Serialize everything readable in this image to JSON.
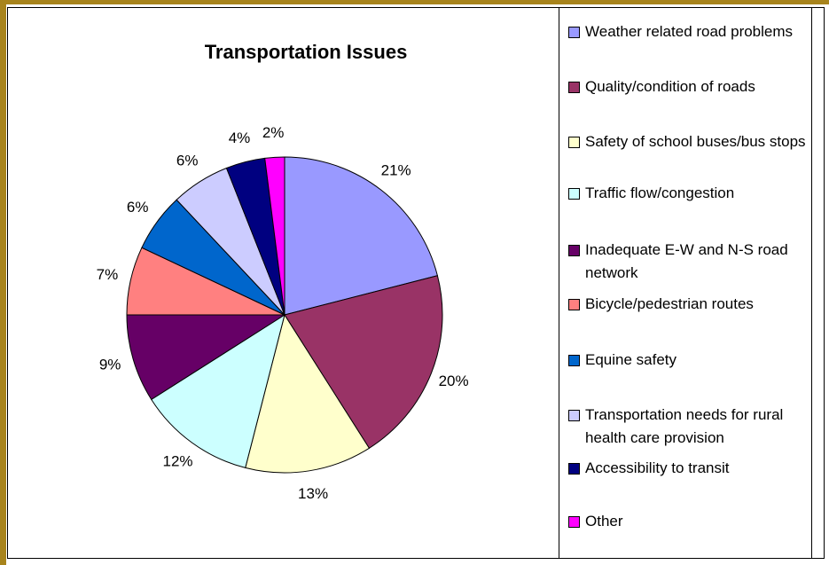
{
  "chart_data": {
    "type": "pie",
    "title": "Transportation Issues",
    "categories": [
      "Weather related road problems",
      "Quality/condition of roads",
      "Safety of school buses/bus stops",
      "Traffic flow/congestion",
      "Inadequate E-W and N-S road network",
      "Bicycle/pedestrian routes",
      "Equine safety",
      "Transportation needs for rural health care provision",
      "Accessibility to transit",
      "Other"
    ],
    "values": [
      21,
      20,
      13,
      12,
      9,
      7,
      6,
      6,
      4,
      2
    ],
    "value_labels": [
      "21%",
      "20%",
      "13%",
      "12%",
      "9%",
      "7%",
      "6%",
      "6%",
      "4%",
      "2%"
    ],
    "colors": [
      "#9999ff",
      "#993366",
      "#ffffcc",
      "#ccffff",
      "#660066",
      "#ff8080",
      "#0066cc",
      "#ccccff",
      "#000080",
      "#ff00ff"
    ],
    "legend": "right"
  }
}
